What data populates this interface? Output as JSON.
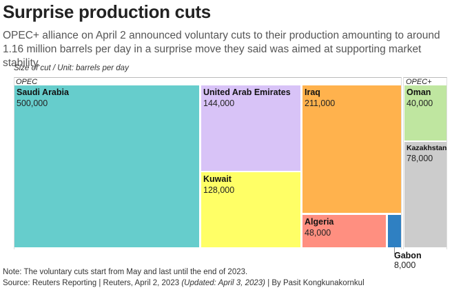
{
  "header": {
    "title": "Surprise production cuts",
    "subtitle": "OPEC+ alliance on April 2 announced voluntary cuts to their production amounting to around 1.16 million barrels per day in a surprise move they said was aimed at supporting market stability.",
    "unit_note": "Size of cut / Unit: barrels per day"
  },
  "chart_data": {
    "type": "treemap",
    "unit": "barrels per day",
    "groups": [
      {
        "name": "OPEC",
        "items": [
          {
            "name": "Saudi Arabia",
            "value": 500000,
            "value_label": "500,000",
            "color": "#66CDCC"
          },
          {
            "name": "United Arab Emirates",
            "value": 144000,
            "value_label": "144,000",
            "color": "#D8C3F7"
          },
          {
            "name": "Kuwait",
            "value": 128000,
            "value_label": "128,000",
            "color": "#FFFF66"
          },
          {
            "name": "Iraq",
            "value": 211000,
            "value_label": "211,000",
            "color": "#FFB24D"
          },
          {
            "name": "Algeria",
            "value": 48000,
            "value_label": "48,000",
            "color": "#FF8F80"
          },
          {
            "name": "Gabon",
            "value": 8000,
            "value_label": "8,000",
            "color": "#2F80C2"
          }
        ]
      },
      {
        "name": "OPEC+",
        "items": [
          {
            "name": "Oman",
            "value": 40000,
            "value_label": "40,000",
            "color": "#BFE6A0"
          },
          {
            "name": "Kazakhstan",
            "value": 78000,
            "value_label": "78,000",
            "color": "#CCCCCC"
          }
        ]
      }
    ]
  },
  "footer": {
    "note": "Note: The voluntary cuts start from May and last until the end of 2023.",
    "source_prefix": "Source: Reuters Reporting | Reuters, April 2, 2023 ",
    "source_updated": "(Updated: April 3, 2023)",
    "source_suffix": " | By Pasit Kongkunakornkul"
  }
}
